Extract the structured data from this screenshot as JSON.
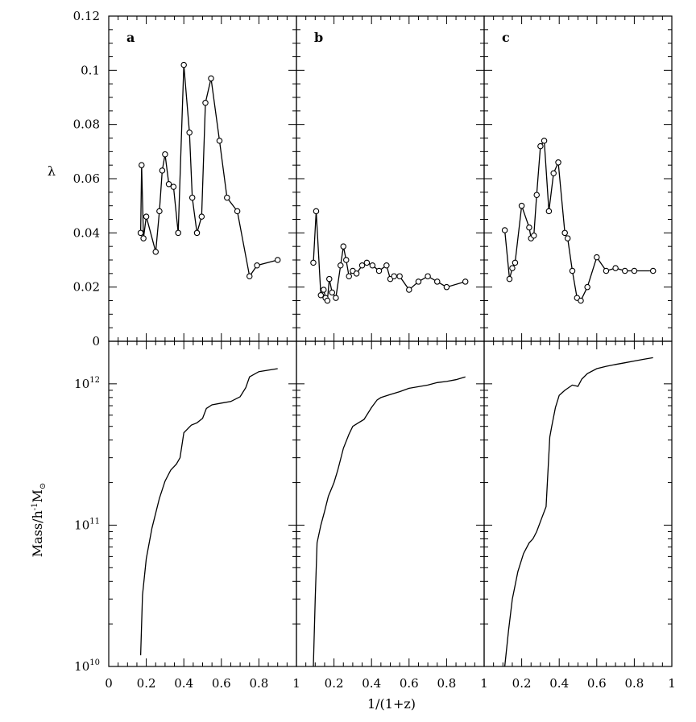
{
  "chart_data": {
    "type": "line",
    "layout": "2x3 grid, shared x-axis",
    "xlabel": "1/(1+z)",
    "x_tick_labels": [
      "0",
      "0.2",
      "0.4",
      "0.6",
      "0.8",
      "1"
    ],
    "first_tick_label": "0",
    "last_tick_label": "1",
    "top_ylabel": "λ",
    "top_ylim": [
      0,
      0.12
    ],
    "top_y_ticks": [
      0,
      0.02,
      0.04,
      0.06,
      0.08,
      0.1,
      0.12
    ],
    "top_y_tick_labels": [
      "0",
      "0.02",
      "0.04",
      "0.06",
      "0.08",
      "0.1",
      "0.12"
    ],
    "bottom_ylabel_main": "Mass/h",
    "bottom_ylabel_sup": "-1",
    "bottom_ylabel_tail": "M",
    "bottom_ylabel_sub": "⊙",
    "bottom_yscale": "log",
    "bottom_ylim": [
      10000000000.0,
      2000000000000.0
    ],
    "bottom_y_ticks": [
      10000000000.0,
      100000000000.0,
      1000000000000.0
    ],
    "bottom_y_tick_labels": [
      {
        "base": "10",
        "exp": "10"
      },
      {
        "base": "10",
        "exp": "11"
      },
      {
        "base": "10",
        "exp": "12"
      }
    ],
    "xlim": [
      0,
      1
    ],
    "panels": [
      {
        "label": "a",
        "lambda": {
          "x": [
            0.17,
            0.175,
            0.185,
            0.2,
            0.25,
            0.27,
            0.285,
            0.3,
            0.32,
            0.345,
            0.37,
            0.4,
            0.43,
            0.445,
            0.47,
            0.495,
            0.515,
            0.545,
            0.59,
            0.63,
            0.685,
            0.75,
            0.79,
            0.9
          ],
          "y": [
            0.04,
            0.065,
            0.038,
            0.046,
            0.033,
            0.048,
            0.063,
            0.069,
            0.058,
            0.057,
            0.04,
            0.102,
            0.077,
            0.053,
            0.04,
            0.046,
            0.088,
            0.097,
            0.074,
            0.053,
            0.048,
            0.024,
            0.028,
            0.03
          ]
        },
        "mass": {
          "x": [
            0.17,
            0.18,
            0.2,
            0.23,
            0.27,
            0.3,
            0.33,
            0.36,
            0.38,
            0.4,
            0.44,
            0.47,
            0.5,
            0.52,
            0.55,
            0.6,
            0.65,
            0.7,
            0.73,
            0.75,
            0.8,
            0.9
          ],
          "y": [
            12000000000.0,
            32000000000.0,
            58000000000.0,
            95000000000.0,
            155000000000.0,
            205000000000.0,
            245000000000.0,
            270000000000.0,
            300000000000.0,
            450000000000.0,
            510000000000.0,
            530000000000.0,
            570000000000.0,
            670000000000.0,
            710000000000.0,
            730000000000.0,
            750000000000.0,
            810000000000.0,
            940000000000.0,
            1120000000000.0,
            1220000000000.0,
            1280000000000.0
          ]
        }
      },
      {
        "label": "b",
        "lambda": {
          "x": [
            0.09,
            0.105,
            0.13,
            0.145,
            0.155,
            0.165,
            0.175,
            0.19,
            0.21,
            0.235,
            0.25,
            0.265,
            0.28,
            0.3,
            0.32,
            0.35,
            0.375,
            0.405,
            0.44,
            0.48,
            0.5,
            0.52,
            0.55,
            0.6,
            0.65,
            0.7,
            0.75,
            0.8,
            0.9
          ],
          "y": [
            0.029,
            0.048,
            0.017,
            0.019,
            0.016,
            0.015,
            0.023,
            0.018,
            0.016,
            0.028,
            0.035,
            0.03,
            0.024,
            0.026,
            0.025,
            0.028,
            0.029,
            0.028,
            0.026,
            0.028,
            0.023,
            0.024,
            0.024,
            0.019,
            0.022,
            0.024,
            0.022,
            0.02,
            0.022
          ]
        },
        "mass": {
          "x": [
            0.09,
            0.1,
            0.11,
            0.13,
            0.15,
            0.17,
            0.2,
            0.22,
            0.25,
            0.28,
            0.3,
            0.33,
            0.36,
            0.4,
            0.43,
            0.45,
            0.5,
            0.55,
            0.6,
            0.7,
            0.75,
            0.8,
            0.85,
            0.9
          ],
          "y": [
            10000000000.0,
            30000000000.0,
            75000000000.0,
            100000000000.0,
            125000000000.0,
            160000000000.0,
            200000000000.0,
            245000000000.0,
            350000000000.0,
            440000000000.0,
            500000000000.0,
            530000000000.0,
            560000000000.0,
            680000000000.0,
            770000000000.0,
            800000000000.0,
            840000000000.0,
            880000000000.0,
            930000000000.0,
            980000000000.0,
            1020000000000.0,
            1040000000000.0,
            1070000000000.0,
            1120000000000.0
          ]
        }
      },
      {
        "label": "c",
        "lambda": {
          "x": [
            0.11,
            0.135,
            0.15,
            0.165,
            0.2,
            0.24,
            0.25,
            0.265,
            0.28,
            0.3,
            0.32,
            0.345,
            0.37,
            0.395,
            0.43,
            0.445,
            0.47,
            0.495,
            0.515,
            0.55,
            0.6,
            0.65,
            0.7,
            0.75,
            0.8,
            0.9
          ],
          "y": [
            0.041,
            0.023,
            0.027,
            0.029,
            0.05,
            0.042,
            0.038,
            0.039,
            0.054,
            0.072,
            0.074,
            0.048,
            0.062,
            0.066,
            0.04,
            0.038,
            0.026,
            0.016,
            0.015,
            0.02,
            0.031,
            0.026,
            0.027,
            0.026,
            0.026,
            0.026
          ]
        },
        "mass": {
          "x": [
            0.11,
            0.13,
            0.15,
            0.18,
            0.21,
            0.24,
            0.26,
            0.28,
            0.31,
            0.33,
            0.35,
            0.36,
            0.38,
            0.4,
            0.43,
            0.47,
            0.5,
            0.52,
            0.55,
            0.6,
            0.65,
            0.7,
            0.75,
            0.8,
            0.85,
            0.9
          ],
          "y": [
            10000000000.0,
            18000000000.0,
            30000000000.0,
            47000000000.0,
            63000000000.0,
            75000000000.0,
            80000000000.0,
            90000000000.0,
            115000000000.0,
            135000000000.0,
            420000000000.0,
            500000000000.0,
            680000000000.0,
            830000000000.0,
            900000000000.0,
            980000000000.0,
            960000000000.0,
            1080000000000.0,
            1180000000000.0,
            1280000000000.0,
            1330000000000.0,
            1370000000000.0,
            1410000000000.0,
            1450000000000.0,
            1490000000000.0,
            1530000000000.0
          ]
        }
      }
    ]
  }
}
